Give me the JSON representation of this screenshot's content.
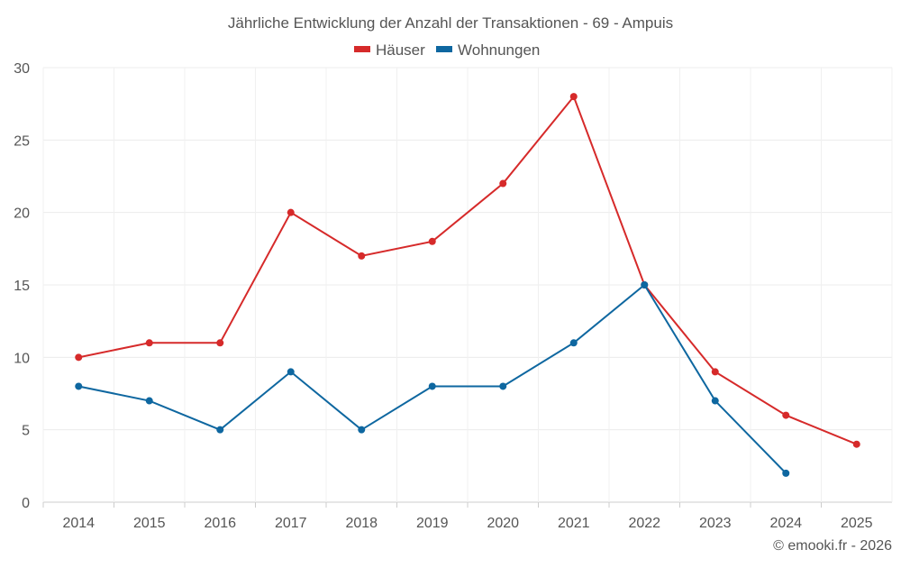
{
  "chart_data": {
    "type": "line",
    "title": "Jährliche Entwicklung der Anzahl der Transaktionen - 69 - Ampuis",
    "categories": [
      "2014",
      "2015",
      "2016",
      "2017",
      "2018",
      "2019",
      "2020",
      "2021",
      "2022",
      "2023",
      "2024",
      "2025"
    ],
    "series": [
      {
        "name": "Häuser",
        "color": "#d62a2a",
        "values": [
          10,
          11,
          11,
          20,
          17,
          18,
          22,
          28,
          15,
          9,
          6,
          4
        ]
      },
      {
        "name": "Wohnungen",
        "color": "#0e67a0",
        "values": [
          8,
          7,
          5,
          9,
          5,
          8,
          8,
          11,
          15,
          7,
          2,
          null
        ]
      }
    ],
    "yticks": [
      "0",
      "5",
      "10",
      "15",
      "20",
      "25",
      "30"
    ],
    "ylim": [
      0,
      30
    ],
    "xlabel": "",
    "ylabel": "",
    "grid": true,
    "legend": "top-center",
    "credit": "© emooki.fr - 2026"
  }
}
